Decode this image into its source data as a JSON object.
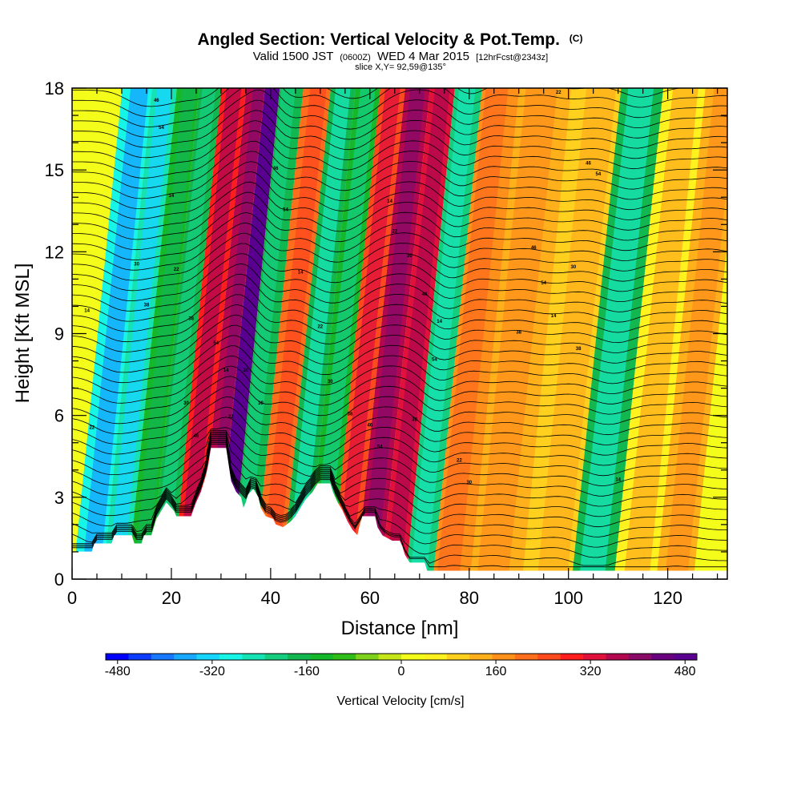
{
  "titles": {
    "main": "Angled Section: Vertical Velocity & Pot.Temp.",
    "main_suffix": "(C)",
    "valid_prefix": "Valid 1500 JST",
    "valid_z": "(0600Z)",
    "valid_date": "WED 4 Mar 2015",
    "valid_fcst": "[12hrFcst@2343z]",
    "slice": "slice X,Y= 92,59@135°"
  },
  "chart_data": {
    "type": "heatmap",
    "xlabel": "Distance [nm]",
    "ylabel": "Height [Kft MSL]",
    "xlim": [
      0,
      132
    ],
    "ylim": [
      0,
      18
    ],
    "x_ticks": [
      0,
      20,
      40,
      60,
      80,
      100,
      120
    ],
    "y_ticks": [
      0,
      3,
      6,
      9,
      12,
      15,
      18
    ],
    "grid": false,
    "field": "vertical velocity (cm/s) with potential temperature contours",
    "velocity_bands": [
      {
        "x": 7,
        "value": -300
      },
      {
        "x": 12,
        "value": -250
      },
      {
        "x": 17,
        "value": -120
      },
      {
        "x": 21,
        "value": -160
      },
      {
        "x": 26,
        "value": 300
      },
      {
        "x": 31,
        "value": 360
      },
      {
        "x": 33.5,
        "value": 480
      },
      {
        "x": 37,
        "value": -160
      },
      {
        "x": 43,
        "value": 200
      },
      {
        "x": 48,
        "value": -180
      },
      {
        "x": 53,
        "value": -140
      },
      {
        "x": 58,
        "value": 260
      },
      {
        "x": 63,
        "value": 360
      },
      {
        "x": 68,
        "value": 320
      },
      {
        "x": 73,
        "value": -200
      },
      {
        "x": 79,
        "value": 160
      },
      {
        "x": 88,
        "value": 130
      },
      {
        "x": 100,
        "value": 80
      },
      {
        "x": 108,
        "value": -180
      },
      {
        "x": 117,
        "value": 60
      },
      {
        "x": 125,
        "value": 120
      }
    ],
    "terrain": [
      [
        0,
        1.0
      ],
      [
        4,
        1.0
      ],
      [
        4.5,
        1.3
      ],
      [
        8,
        1.3
      ],
      [
        8.5,
        1.6
      ],
      [
        12,
        1.6
      ],
      [
        12.5,
        1.3
      ],
      [
        14,
        1.3
      ],
      [
        14.5,
        1.6
      ],
      [
        16,
        1.6
      ],
      [
        16.5,
        1.9
      ],
      [
        17,
        2.2
      ],
      [
        18,
        2.5
      ],
      [
        19,
        2.8
      ],
      [
        20.5,
        2.5
      ],
      [
        21,
        2.3
      ],
      [
        24,
        2.3
      ],
      [
        25,
        2.8
      ],
      [
        26,
        3.2
      ],
      [
        27,
        3.8
      ],
      [
        27.5,
        4.2
      ],
      [
        28,
        4.8
      ],
      [
        31,
        4.8
      ],
      [
        31.5,
        4.2
      ],
      [
        32,
        3.6
      ],
      [
        33,
        3.2
      ],
      [
        34,
        3.0
      ],
      [
        34.5,
        2.6
      ],
      [
        35,
        2.8
      ],
      [
        35.5,
        3.1
      ],
      [
        36.5,
        3.3
      ],
      [
        37.5,
        3.0
      ],
      [
        38,
        2.6
      ],
      [
        39,
        2.3
      ],
      [
        40.5,
        2.2
      ],
      [
        41,
        2.0
      ],
      [
        42.5,
        1.9
      ],
      [
        44,
        2.1
      ],
      [
        45,
        2.3
      ],
      [
        46,
        2.6
      ],
      [
        47,
        2.9
      ],
      [
        48.5,
        3.2
      ],
      [
        49.5,
        3.5
      ],
      [
        52,
        3.5
      ],
      [
        52.5,
        3.2
      ],
      [
        53.5,
        2.8
      ],
      [
        54.5,
        2.5
      ],
      [
        55.5,
        2.1
      ],
      [
        56.5,
        1.8
      ],
      [
        57.5,
        1.6
      ],
      [
        58,
        2.0
      ],
      [
        58.5,
        2.3
      ],
      [
        61,
        2.3
      ],
      [
        61.5,
        1.9
      ],
      [
        62.5,
        1.6
      ],
      [
        64.5,
        1.4
      ],
      [
        66,
        1.4
      ],
      [
        66.5,
        1.2
      ],
      [
        67,
        0.9
      ],
      [
        68,
        0.6
      ],
      [
        71,
        0.6
      ],
      [
        71.5,
        0.3
      ],
      [
        132,
        0.3
      ]
    ],
    "contour_labels": [
      "14",
      "22",
      "30",
      "38",
      "46",
      "54"
    ],
    "colorbar": {
      "label": "Vertical Velocity [cm/s]",
      "ticks": [
        "-480",
        "-320",
        "-160",
        "0",
        "160",
        "320",
        "480"
      ],
      "min": -500,
      "max": 500,
      "colors": [
        "#0000ff",
        "#0b3cff",
        "#1878ff",
        "#17a8ff",
        "#16d6ff",
        "#17f5e6",
        "#16e3b4",
        "#14cd7d",
        "#13b74f",
        "#16b82b",
        "#2fbd1a",
        "#7ed21b",
        "#c7e61a",
        "#f4fc1a",
        "#fff21f",
        "#ffd11e",
        "#ffb01b",
        "#ff911a",
        "#ff6e1d",
        "#ff4a1e",
        "#ff1d1d",
        "#e0113b",
        "#b3084f",
        "#8a0a68",
        "#6a0080",
        "#5a0090"
      ]
    }
  }
}
